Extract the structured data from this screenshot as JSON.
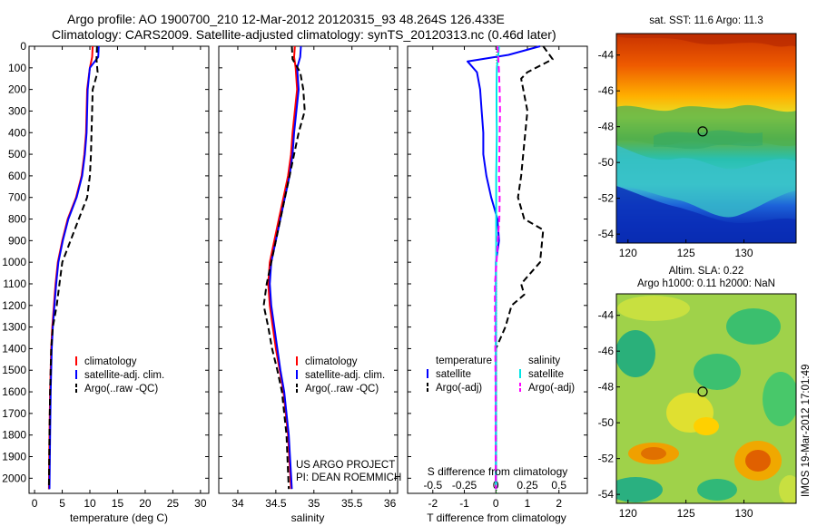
{
  "header": {
    "line1": "Argo profile: AO 1900700_210 12-Mar-2012 20120315_93 48.264S 126.433E",
    "line2": "Climatology: CARS2009. Satellite-adjusted climatology: synTS_20120313.nc (0.46d later)"
  },
  "depth_ticks": [
    0,
    100,
    200,
    300,
    400,
    500,
    600,
    700,
    800,
    900,
    1000,
    1100,
    1200,
    1300,
    1400,
    1500,
    1600,
    1700,
    1800,
    1900,
    2000
  ],
  "credit": {
    "line1": "US ARGO PROJECT",
    "line2": "PI: DEAN ROEMMICH"
  },
  "sst_panel": {
    "title": "sat. SST: 11.6 Argo: 11.3"
  },
  "sla_panel": {
    "title1": "Altim. SLA: 0.22",
    "title2": "Argo h1000: 0.11 h2000: NaN"
  },
  "imos_label": "IMOS 19-Mar-2012 17:01:49",
  "colors": {
    "climatology": "#ff0000",
    "satellite": "#0000ff",
    "argo": "#000000",
    "sal_satellite": "#00e5e5",
    "sal_argo": "#ff00ff"
  },
  "chart_data": [
    {
      "type": "line",
      "xlabel": "temperature (deg C)",
      "ylabel": "",
      "xlim": [
        -1,
        31.5
      ],
      "ylim": [
        2070,
        0
      ],
      "xticks": [
        0,
        5,
        10,
        15,
        20,
        25,
        30
      ],
      "legend": [
        {
          "name": "climatology",
          "color": "#ff0000"
        },
        {
          "name": "satellite-adj. clim.",
          "color": "#0000ff"
        },
        {
          "name": "Argo(..raw -QC)",
          "color": "#000000"
        }
      ],
      "series": [
        {
          "name": "climatology",
          "color": "#ff0000",
          "dash": false,
          "x": [
            10.5,
            10.4,
            10.0,
            9.5,
            9.4,
            9.3,
            9.0,
            8.5,
            7.5,
            6.0,
            5.0,
            4.2,
            3.8,
            3.5,
            3.2,
            3.0,
            2.9,
            2.8,
            2.7,
            2.6
          ],
          "y": [
            0,
            50,
            100,
            200,
            300,
            400,
            500,
            600,
            700,
            800,
            900,
            1000,
            1100,
            1200,
            1300,
            1400,
            1500,
            1600,
            1800,
            2050
          ]
        },
        {
          "name": "satellite-adj. clim.",
          "color": "#0000ff",
          "dash": false,
          "x": [
            11.6,
            11.5,
            10.0,
            9.6,
            9.5,
            9.4,
            9.1,
            8.6,
            7.6,
            6.1,
            5.1,
            4.3,
            3.9,
            3.6,
            3.3,
            3.1,
            3.0,
            2.9,
            2.8,
            2.7
          ],
          "y": [
            0,
            50,
            100,
            200,
            300,
            400,
            500,
            600,
            700,
            800,
            900,
            1000,
            1100,
            1200,
            1300,
            1400,
            1500,
            1600,
            1800,
            2050
          ]
        },
        {
          "name": "Argo(..raw -QC)",
          "color": "#000000",
          "dash": true,
          "x": [
            11.3,
            11.2,
            11.4,
            10.5,
            10.4,
            10.3,
            10.2,
            10.0,
            9.5,
            8.0,
            6.5,
            5.0,
            4.5,
            4.0,
            3.3,
            3.0,
            2.9,
            2.8,
            2.7,
            2.6
          ],
          "y": [
            0,
            60,
            120,
            200,
            300,
            400,
            500,
            600,
            700,
            800,
            900,
            1000,
            1100,
            1200,
            1300,
            1400,
            1500,
            1600,
            1800,
            2050
          ]
        }
      ]
    },
    {
      "type": "line",
      "xlabel": "salinity",
      "ylabel": "",
      "xlim": [
        33.75,
        36.1
      ],
      "ylim": [
        2070,
        0
      ],
      "xticks": [
        34,
        34.5,
        35,
        35.5,
        36
      ],
      "xticklabels": [
        "34",
        "34.5",
        "35",
        "35.5",
        "36"
      ],
      "legend": [
        {
          "name": "climatology",
          "color": "#ff0000"
        },
        {
          "name": "satellite-adj. clim.",
          "color": "#0000ff"
        },
        {
          "name": "Argo(..raw -QC)",
          "color": "#000000"
        }
      ],
      "series": [
        {
          "name": "climatology",
          "color": "#ff0000",
          "dash": false,
          "x": [
            34.75,
            34.74,
            34.76,
            34.78,
            34.75,
            34.72,
            34.7,
            34.66,
            34.6,
            34.54,
            34.48,
            34.42,
            34.4,
            34.42,
            34.46,
            34.5,
            34.55,
            34.6,
            34.66,
            34.7
          ],
          "y": [
            0,
            50,
            100,
            200,
            300,
            400,
            500,
            600,
            700,
            800,
            900,
            1000,
            1100,
            1200,
            1300,
            1400,
            1500,
            1600,
            1800,
            2050
          ]
        },
        {
          "name": "satellite-adj. clim.",
          "color": "#0000ff",
          "dash": false,
          "x": [
            34.83,
            34.82,
            34.78,
            34.8,
            34.77,
            34.74,
            34.72,
            34.68,
            34.62,
            34.56,
            34.5,
            34.44,
            34.42,
            34.44,
            34.48,
            34.52,
            34.56,
            34.61,
            34.67,
            34.71
          ],
          "y": [
            0,
            50,
            100,
            200,
            300,
            400,
            500,
            600,
            700,
            800,
            900,
            1000,
            1100,
            1200,
            1300,
            1400,
            1500,
            1600,
            1800,
            2050
          ]
        },
        {
          "name": "Argo(..raw -QC)",
          "color": "#000000",
          "dash": true,
          "x": [
            34.71,
            34.72,
            34.82,
            34.86,
            34.88,
            34.8,
            34.74,
            34.68,
            34.62,
            34.56,
            34.5,
            34.44,
            34.38,
            34.34,
            34.4,
            34.45,
            34.52,
            34.58,
            34.64,
            34.67
          ],
          "y": [
            0,
            60,
            120,
            200,
            300,
            400,
            500,
            600,
            700,
            800,
            900,
            1000,
            1100,
            1200,
            1300,
            1400,
            1500,
            1600,
            1800,
            2050
          ]
        }
      ]
    },
    {
      "type": "line",
      "xlabel": "T difference from climatology",
      "x2label": "S difference from climatology",
      "ylabel": "",
      "xlim": [
        -2.8,
        2.9
      ],
      "ylim": [
        2070,
        0
      ],
      "xticks": [
        -2,
        -1,
        0,
        1,
        2
      ],
      "x2ticks": [
        -0.5,
        -0.25,
        0,
        0.25,
        0.5
      ],
      "x2ticklabels": [
        "-0.5",
        "-0.25",
        "0",
        "0.25",
        "0.5"
      ],
      "legend": [
        {
          "group": "temperature",
          "name": "satellite",
          "color": "#0000ff",
          "dash": false
        },
        {
          "group": "temperature",
          "name": "Argo(-adj)",
          "color": "#000000",
          "dash": true
        },
        {
          "group": "salinity",
          "name": "satellite",
          "color": "#00e5e5",
          "dash": false
        },
        {
          "group": "salinity",
          "name": "Argo(-adj)",
          "color": "#ff00ff",
          "dash": true
        }
      ],
      "series": [
        {
          "name": "temperature satellite",
          "color": "#0000ff",
          "dash": false,
          "x": [
            1.4,
            0.4,
            -0.9,
            -0.6,
            -0.5,
            -0.45,
            -0.4,
            -0.4,
            -0.3,
            -0.15,
            0.05,
            0.1,
            0.0,
            0.0,
            0.0,
            0.0,
            0.0,
            0.0,
            0.0
          ],
          "y": [
            0,
            40,
            70,
            120,
            200,
            300,
            400,
            500,
            600,
            700,
            800,
            900,
            1000,
            1100,
            1200,
            1400,
            1600,
            1800,
            2050
          ]
        },
        {
          "name": "temperature Argo(-adj)",
          "color": "#000000",
          "dash": true,
          "x": [
            1.5,
            1.8,
            1.0,
            0.8,
            1.0,
            0.9,
            0.8,
            0.7,
            0.9,
            1.5,
            1.4,
            0.8,
            0.9,
            0.5,
            0.3,
            0.0,
            0.0,
            0.0,
            0.0
          ],
          "y": [
            0,
            60,
            120,
            150,
            300,
            450,
            600,
            700,
            800,
            850,
            1000,
            1100,
            1150,
            1200,
            1300,
            1400,
            1600,
            1800,
            2050
          ]
        },
        {
          "name": "salinity satellite",
          "color": "#00e5e5",
          "dash": false,
          "x": [
            0.1,
            0.07,
            0.03,
            0.02,
            0.02,
            0.03,
            0.02,
            0.01,
            0.01,
            0.01,
            0.01,
            0.01,
            0.0,
            0.0,
            0.0,
            0.0,
            0.0
          ],
          "y": [
            0,
            50,
            100,
            200,
            300,
            400,
            500,
            600,
            700,
            800,
            900,
            1000,
            1100,
            1300,
            1500,
            1800,
            2050
          ]
        },
        {
          "name": "salinity Argo(-adj)",
          "color": "#ff00ff",
          "dash": true,
          "x": [
            0.05,
            0.08,
            0.1,
            0.12,
            0.13,
            0.12,
            0.11,
            0.1,
            0.12,
            0.11,
            0.06,
            0.02,
            -0.03,
            -0.03,
            -0.02,
            -0.01,
            -0.01,
            0.0
          ],
          "y": [
            0,
            60,
            120,
            200,
            300,
            400,
            500,
            600,
            700,
            800,
            900,
            1000,
            1100,
            1200,
            1400,
            1600,
            1800,
            2050
          ]
        }
      ]
    },
    {
      "type": "heatmap",
      "title": "sat. SST: 11.6 Argo: 11.3",
      "xlim": [
        119,
        134.5
      ],
      "ylim": [
        -54.5,
        -42.8
      ],
      "xticks": [
        120,
        125,
        130
      ],
      "yticks": [
        -44,
        -46,
        -48,
        -50,
        -52,
        -54
      ],
      "marker": {
        "lon": 126.433,
        "lat": -48.264
      }
    },
    {
      "type": "heatmap",
      "title": "Altim. SLA: 0.22 Argo h1000: 0.11 h2000: NaN",
      "xlim": [
        119,
        134.5
      ],
      "ylim": [
        -54.5,
        -42.8
      ],
      "xticks": [
        120,
        125,
        130
      ],
      "yticks": [
        -44,
        -46,
        -48,
        -50,
        -52,
        -54
      ],
      "marker": {
        "lon": 126.433,
        "lat": -48.264
      }
    }
  ]
}
